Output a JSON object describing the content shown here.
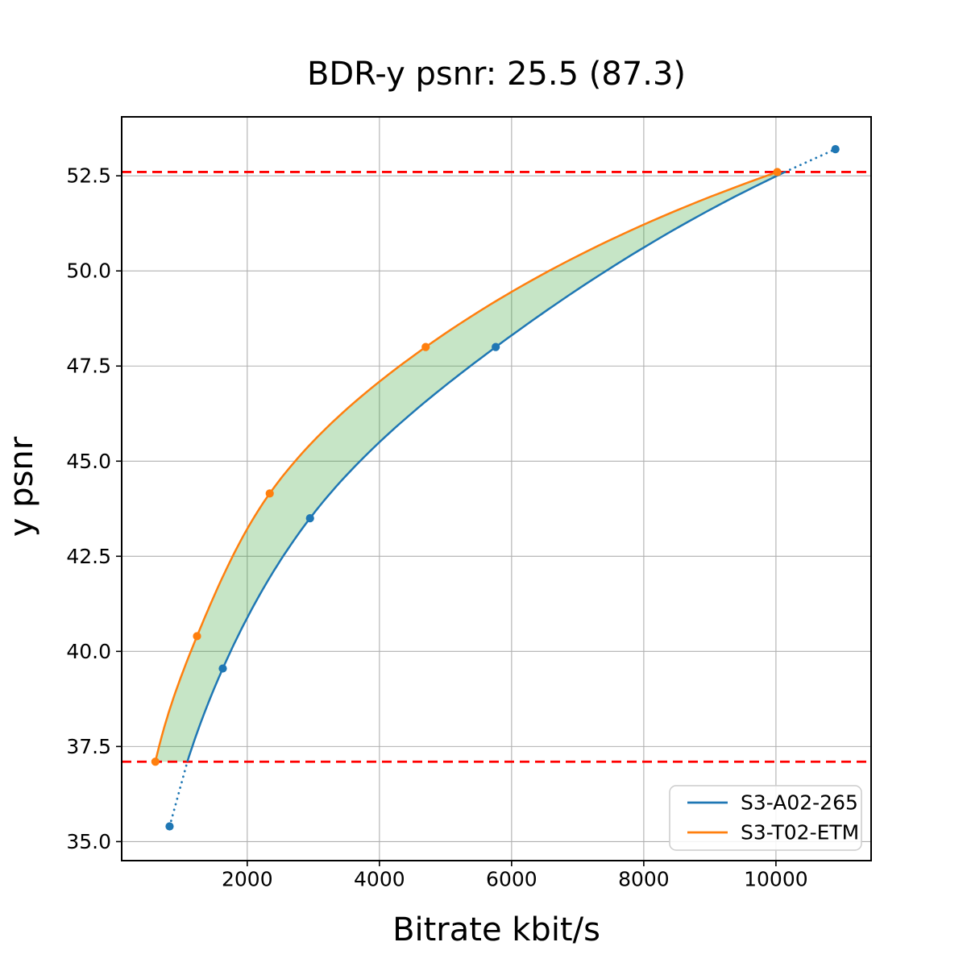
{
  "chart_data": {
    "type": "line",
    "title": "BDR-y psnr: 25.5 (87.3)",
    "xlabel": "Bitrate kbit/s",
    "ylabel": "y psnr",
    "xlim": [
      100,
      11440
    ],
    "ylim": [
      34.5,
      54.05
    ],
    "xticks": [
      2000,
      4000,
      6000,
      8000,
      10000
    ],
    "xtick_labels": [
      "2000",
      "4000",
      "6000",
      "8000",
      "10000"
    ],
    "yticks": [
      35.0,
      37.5,
      40.0,
      42.5,
      45.0,
      47.5,
      50.0,
      52.5
    ],
    "ytick_labels": [
      "35.0",
      "37.5",
      "40.0",
      "42.5",
      "45.0",
      "47.5",
      "50.0",
      "52.5"
    ],
    "grid": true,
    "grid_color": "#b0b0b0",
    "series": [
      {
        "name": "S3-A02-265",
        "color": "#1f77b4",
        "marker": "circle",
        "x": [
          825,
          1630,
          2950,
          5760,
          10900
        ],
        "y": [
          35.4,
          39.55,
          43.5,
          48.0,
          53.2
        ]
      },
      {
        "name": "S3-T02-ETM",
        "color": "#ff7f0e",
        "marker": "circle",
        "x": [
          610,
          1240,
          2340,
          4700,
          10020
        ],
        "y": [
          37.1,
          40.4,
          44.15,
          48.0,
          52.6
        ]
      }
    ],
    "overlap_lines": {
      "color": "#ff0000",
      "style": "dashed",
      "values": [
        37.1,
        52.6
      ]
    },
    "fill_between": {
      "color": "#2ca02c",
      "opacity": 0.27,
      "psnr_range": [
        37.1,
        52.6
      ]
    },
    "legend": {
      "position": "lower right",
      "entries": [
        "S3-A02-265",
        "S3-T02-ETM"
      ]
    }
  }
}
